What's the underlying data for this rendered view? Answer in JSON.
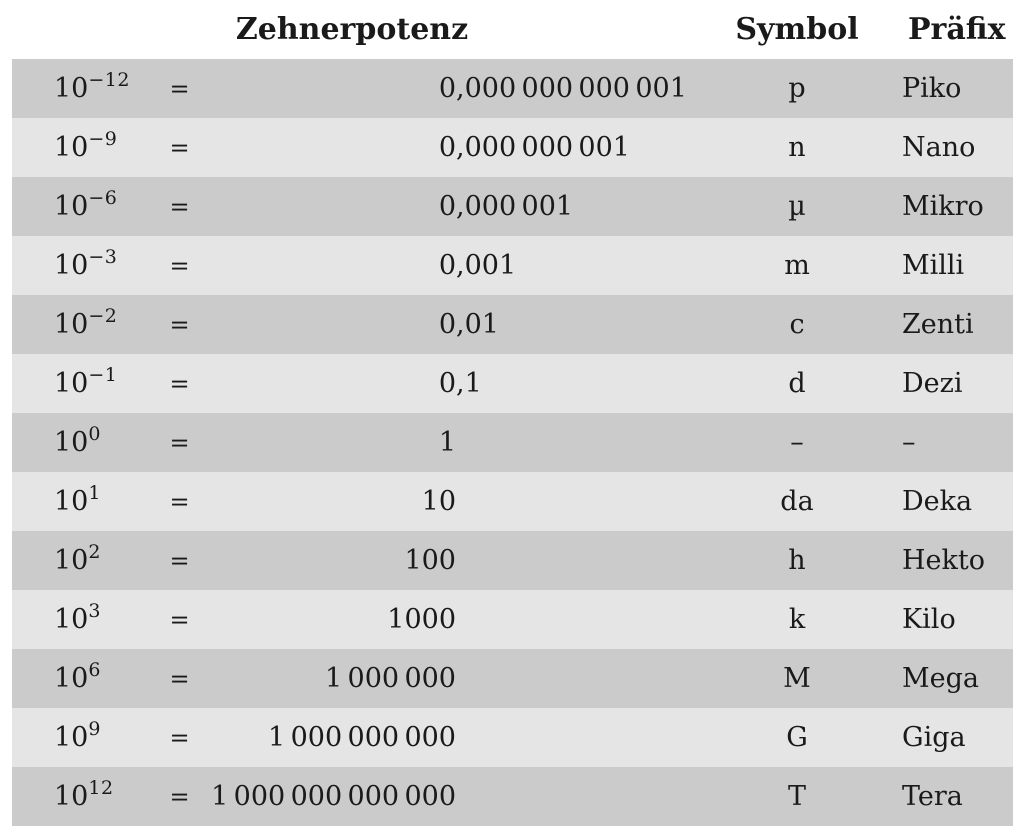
{
  "colors": {
    "row_dark": "#cbcbcb",
    "row_light": "#e5e5e5",
    "text": "#1a1a1a",
    "background": "#ffffff"
  },
  "table": {
    "headers": {
      "power": "Zehnerpotenz",
      "symbol": "Symbol",
      "prefix": "Präfix"
    },
    "power_base": "10",
    "equals_sign": "=",
    "rows": [
      {
        "exponent": "−12",
        "int": "0",
        "frac": ",000 000 000 001",
        "symbol": "p",
        "prefix": "Piko"
      },
      {
        "exponent": "−9",
        "int": "0",
        "frac": ",000 000 001",
        "symbol": "n",
        "prefix": "Nano"
      },
      {
        "exponent": "−6",
        "int": "0",
        "frac": ",000 001",
        "symbol": "µ",
        "prefix": "Mikro"
      },
      {
        "exponent": "−3",
        "int": "0",
        "frac": ",001",
        "symbol": "m",
        "prefix": "Milli"
      },
      {
        "exponent": "−2",
        "int": "0",
        "frac": ",01",
        "symbol": "c",
        "prefix": "Zenti"
      },
      {
        "exponent": "−1",
        "int": "0",
        "frac": ",1",
        "symbol": "d",
        "prefix": "Dezi"
      },
      {
        "exponent": "0",
        "int": "1",
        "frac": "",
        "symbol": "–",
        "prefix": "–"
      },
      {
        "exponent": "1",
        "int": "10",
        "frac": "",
        "symbol": "da",
        "prefix": "Deka"
      },
      {
        "exponent": "2",
        "int": "100",
        "frac": "",
        "symbol": "h",
        "prefix": "Hekto"
      },
      {
        "exponent": "3",
        "int": "1000",
        "frac": "",
        "symbol": "k",
        "prefix": "Kilo"
      },
      {
        "exponent": "6",
        "int": "1 000 000",
        "frac": "",
        "symbol": "M",
        "prefix": "Mega"
      },
      {
        "exponent": "9",
        "int": "1 000 000 000",
        "frac": "",
        "symbol": "G",
        "prefix": "Giga"
      },
      {
        "exponent": "12",
        "int": "1 000 000 000 000",
        "frac": "",
        "symbol": "T",
        "prefix": "Tera"
      }
    ]
  }
}
